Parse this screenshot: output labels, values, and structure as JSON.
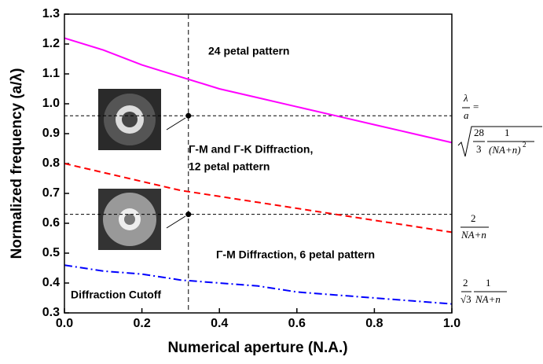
{
  "chart_data": {
    "type": "line",
    "x_label": "Numerical aperture (N.A.)",
    "y_label": "Normalized frequency (a/λ)",
    "x": [
      0,
      0.1,
      0.2,
      0.3,
      0.4,
      0.5,
      0.6,
      0.7,
      0.8,
      0.9,
      1.0
    ],
    "series": [
      {
        "color": "#ff00ff",
        "dash": "none",
        "values": [
          1.22,
          1.18,
          1.13,
          1.09,
          1.05,
          1.02,
          0.99,
          0.96,
          0.93,
          0.9,
          0.87
        ]
      },
      {
        "color": "#ff0000",
        "dash": "8,5",
        "values": [
          0.8,
          0.77,
          0.74,
          0.71,
          0.69,
          0.67,
          0.65,
          0.63,
          0.61,
          0.59,
          0.57
        ]
      },
      {
        "color": "#0000ff",
        "dash": "10,4,2,4",
        "values": [
          0.46,
          0.44,
          0.43,
          0.41,
          0.4,
          0.39,
          0.37,
          0.36,
          0.35,
          0.34,
          0.33
        ]
      }
    ],
    "reference_x": [
      0.32
    ],
    "reference_y": [
      0.96,
      0.63
    ],
    "points": {
      "x": [
        0.32,
        0.32
      ],
      "y": [
        0.96,
        0.63
      ]
    },
    "xlim": [
      0,
      1.0
    ],
    "ylim": [
      0.3,
      1.3
    ],
    "xticks": [
      {
        "value": 0,
        "label": "0.0"
      },
      0.2,
      0.4,
      0.6,
      0.8,
      {
        "value": 1.0,
        "label": "1.0"
      }
    ],
    "yticks": [
      0.3,
      0.4,
      0.5,
      0.6,
      0.7,
      0.8,
      0.9,
      {
        "value": 1.0,
        "label": "1.0"
      },
      1.1,
      1.2,
      1.3
    ],
    "annotations": [
      "24 petal pattern",
      "Γ-M and Γ-K Diffraction,",
      "12 petal pattern",
      "Γ-M Diffraction, 6 petal pattern",
      "Diffraction Cutoff"
    ],
    "formulas": {
      "lambda": "λ",
      "a": "a",
      "eq": "=",
      "n28": "28",
      "d3": "3",
      "one": "1",
      "nan2": "(NA+n)",
      "sq": "2",
      "two": "2",
      "nan": "NA+n",
      "sqrt3": "√3",
      "one_b": "1",
      "two_b": "2",
      "nan_b": "NA+n"
    }
  }
}
